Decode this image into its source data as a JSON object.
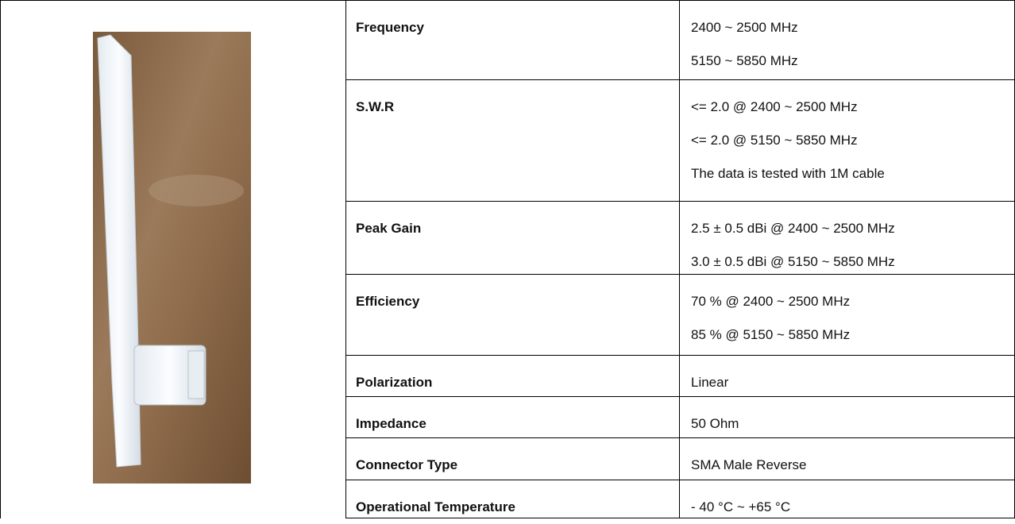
{
  "table": {
    "rows": [
      {
        "label": "Frequency",
        "values": [
          "2400 ~ 2500 MHz",
          "5150 ~ 5850 MHz"
        ]
      },
      {
        "label": "S.W.R",
        "values": [
          "<= 2.0 @ 2400 ~ 2500 MHz",
          "<= 2.0 @ 5150 ~ 5850 MHz",
          "The data is tested with 1M cable"
        ]
      },
      {
        "label": "Peak Gain",
        "values": [
          "2.5 ± 0.5 dBi @ 2400 ~ 2500 MHz",
          "3.0 ± 0.5 dBi @ 5150 ~ 5850 MHz"
        ]
      },
      {
        "label": "Efficiency",
        "values": [
          "70 % @ 2400 ~ 2500 MHz",
          "85 % @ 5150 ~ 5850 MHz"
        ]
      },
      {
        "label": "Polarization",
        "values": [
          "Linear"
        ]
      },
      {
        "label": "Impedance",
        "values": [
          "50 Ohm"
        ]
      },
      {
        "label": "Connector Type",
        "values": [
          "SMA Male Reverse"
        ]
      },
      {
        "label": "Operational Temperature",
        "values": [
          "- 40 °C ~ +65 °C"
        ]
      }
    ]
  }
}
